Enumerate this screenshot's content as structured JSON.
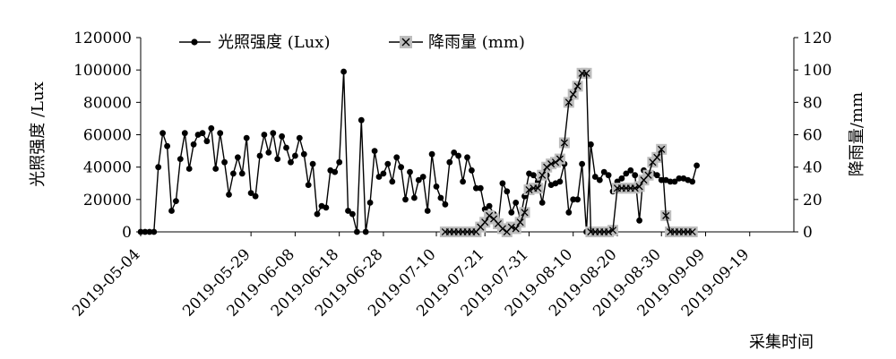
{
  "chart_data": {
    "type": "line",
    "x_type": "date",
    "x_range": [
      "2019-05-04",
      "2019-09-29"
    ],
    "x_ticks": [
      "2019-05-04",
      "2019-05-29",
      "2019-06-08",
      "2019-06-18",
      "2019-06-28",
      "2019-07-10",
      "2019-07-21",
      "2019-07-31",
      "2019-08-10",
      "2019-08-20",
      "2019-08-30",
      "2019-09-09",
      "2019-09-19"
    ],
    "xlabel": "采集时间",
    "y_left": {
      "label": "光照强度 /Lux",
      "range": [
        0,
        120000
      ],
      "ticks": [
        "0",
        "20000",
        "40000",
        "60000",
        "80000",
        "100000",
        "120000"
      ]
    },
    "y_right": {
      "label": "降雨量/mm",
      "range": [
        0,
        120
      ],
      "ticks": [
        "0",
        "20",
        "40",
        "60",
        "80",
        "100",
        "120"
      ]
    },
    "grid": false,
    "legend_position": "top",
    "series": [
      {
        "name": "光照强度 (Lux)",
        "axis": "left",
        "marker": "circle",
        "color": "#000000",
        "points": [
          [
            "2019-05-04",
            0
          ],
          [
            "2019-05-05",
            0
          ],
          [
            "2019-05-06",
            0
          ],
          [
            "2019-05-07",
            0
          ],
          [
            "2019-05-08",
            40000
          ],
          [
            "2019-05-09",
            61000
          ],
          [
            "2019-05-10",
            53000
          ],
          [
            "2019-05-11",
            13000
          ],
          [
            "2019-05-12",
            19000
          ],
          [
            "2019-05-13",
            45000
          ],
          [
            "2019-05-14",
            61000
          ],
          [
            "2019-05-15",
            39000
          ],
          [
            "2019-05-16",
            54000
          ],
          [
            "2019-05-17",
            60000
          ],
          [
            "2019-05-18",
            61000
          ],
          [
            "2019-05-19",
            56000
          ],
          [
            "2019-05-20",
            64000
          ],
          [
            "2019-05-21",
            39000
          ],
          [
            "2019-05-22",
            61000
          ],
          [
            "2019-05-23",
            43000
          ],
          [
            "2019-05-24",
            23000
          ],
          [
            "2019-05-25",
            36000
          ],
          [
            "2019-05-26",
            46000
          ],
          [
            "2019-05-27",
            36000
          ],
          [
            "2019-05-28",
            58000
          ],
          [
            "2019-05-29",
            24000
          ],
          [
            "2019-05-30",
            22000
          ],
          [
            "2019-05-31",
            47000
          ],
          [
            "2019-06-01",
            60000
          ],
          [
            "2019-06-02",
            49000
          ],
          [
            "2019-06-03",
            61000
          ],
          [
            "2019-06-04",
            45000
          ],
          [
            "2019-06-05",
            59000
          ],
          [
            "2019-06-06",
            52000
          ],
          [
            "2019-06-07",
            43000
          ],
          [
            "2019-06-08",
            47000
          ],
          [
            "2019-06-09",
            58000
          ],
          [
            "2019-06-10",
            48000
          ],
          [
            "2019-06-11",
            29000
          ],
          [
            "2019-06-12",
            42000
          ],
          [
            "2019-06-13",
            11000
          ],
          [
            "2019-06-14",
            16000
          ],
          [
            "2019-06-15",
            15000
          ],
          [
            "2019-06-16",
            38000
          ],
          [
            "2019-06-17",
            37000
          ],
          [
            "2019-06-18",
            43000
          ],
          [
            "2019-06-19",
            99000
          ],
          [
            "2019-06-20",
            13000
          ],
          [
            "2019-06-21",
            11000
          ],
          [
            "2019-06-22",
            0
          ],
          [
            "2019-06-23",
            69000
          ],
          [
            "2019-06-24",
            0
          ],
          [
            "2019-06-25",
            18000
          ],
          [
            "2019-06-26",
            50000
          ],
          [
            "2019-06-27",
            34000
          ],
          [
            "2019-06-28",
            36000
          ],
          [
            "2019-06-29",
            42000
          ],
          [
            "2019-06-30",
            31000
          ],
          [
            "2019-07-01",
            46000
          ],
          [
            "2019-07-02",
            40000
          ],
          [
            "2019-07-03",
            20000
          ],
          [
            "2019-07-04",
            37000
          ],
          [
            "2019-07-05",
            21000
          ],
          [
            "2019-07-06",
            32000
          ],
          [
            "2019-07-07",
            34000
          ],
          [
            "2019-07-08",
            13000
          ],
          [
            "2019-07-09",
            48000
          ],
          [
            "2019-07-10",
            28000
          ],
          [
            "2019-07-11",
            21000
          ],
          [
            "2019-07-12",
            17000
          ],
          [
            "2019-07-13",
            43000
          ],
          [
            "2019-07-14",
            49000
          ],
          [
            "2019-07-15",
            47000
          ],
          [
            "2019-07-16",
            31000
          ],
          [
            "2019-07-17",
            46000
          ],
          [
            "2019-07-18",
            38000
          ],
          [
            "2019-07-19",
            27000
          ],
          [
            "2019-07-20",
            27000
          ],
          [
            "2019-07-21",
            14000
          ],
          [
            "2019-07-22",
            16000
          ],
          [
            "2019-07-23",
            11000
          ],
          [
            "2019-07-24",
            5000
          ],
          [
            "2019-07-25",
            30000
          ],
          [
            "2019-07-26",
            25000
          ],
          [
            "2019-07-27",
            12000
          ],
          [
            "2019-07-28",
            18000
          ],
          [
            "2019-07-29",
            8000
          ],
          [
            "2019-07-30",
            22000
          ],
          [
            "2019-07-31",
            36000
          ],
          [
            "2019-08-01",
            35000
          ],
          [
            "2019-08-02",
            31000
          ],
          [
            "2019-08-03",
            18000
          ],
          [
            "2019-08-04",
            35000
          ],
          [
            "2019-08-05",
            29000
          ],
          [
            "2019-08-06",
            30000
          ],
          [
            "2019-08-07",
            31000
          ],
          [
            "2019-08-08",
            42000
          ],
          [
            "2019-08-09",
            12000
          ],
          [
            "2019-08-10",
            20000
          ],
          [
            "2019-08-11",
            20000
          ],
          [
            "2019-08-12",
            42000
          ],
          [
            "2019-08-13",
            0
          ],
          [
            "2019-08-14",
            54000
          ],
          [
            "2019-08-15",
            34000
          ],
          [
            "2019-08-16",
            32000
          ],
          [
            "2019-08-17",
            37000
          ],
          [
            "2019-08-18",
            35000
          ],
          [
            "2019-08-19",
            25000
          ],
          [
            "2019-08-20",
            31000
          ],
          [
            "2019-08-21",
            33000
          ],
          [
            "2019-08-22",
            36000
          ],
          [
            "2019-08-23",
            38000
          ],
          [
            "2019-08-24",
            35000
          ],
          [
            "2019-08-25",
            7000
          ],
          [
            "2019-08-26",
            38000
          ],
          [
            "2019-08-27",
            35000
          ],
          [
            "2019-08-28",
            36000
          ],
          [
            "2019-08-29",
            35000
          ],
          [
            "2019-08-30",
            32000
          ],
          [
            "2019-08-31",
            32000
          ],
          [
            "2019-09-01",
            31000
          ],
          [
            "2019-09-02",
            31000
          ],
          [
            "2019-09-03",
            33000
          ],
          [
            "2019-09-04",
            33000
          ],
          [
            "2019-09-05",
            32000
          ],
          [
            "2019-09-06",
            31000
          ],
          [
            "2019-09-07",
            41000
          ]
        ]
      },
      {
        "name": "降雨量 (mm)",
        "axis": "right",
        "marker": "x-on-gray-square",
        "color": "#000000",
        "marker_fill": "#bdbdbd",
        "points": [
          [
            "2019-07-12",
            0
          ],
          [
            "2019-07-13",
            0
          ],
          [
            "2019-07-14",
            0
          ],
          [
            "2019-07-15",
            0
          ],
          [
            "2019-07-16",
            0
          ],
          [
            "2019-07-17",
            0
          ],
          [
            "2019-07-18",
            0
          ],
          [
            "2019-07-19",
            0
          ],
          [
            "2019-07-20",
            3
          ],
          [
            "2019-07-21",
            6
          ],
          [
            "2019-07-22",
            10
          ],
          [
            "2019-07-23",
            8
          ],
          [
            "2019-07-24",
            5
          ],
          [
            "2019-07-25",
            2
          ],
          [
            "2019-07-26",
            0
          ],
          [
            "2019-07-27",
            3
          ],
          [
            "2019-07-28",
            2
          ],
          [
            "2019-07-29",
            6
          ],
          [
            "2019-07-30",
            12
          ],
          [
            "2019-07-31",
            26
          ],
          [
            "2019-08-01",
            27
          ],
          [
            "2019-08-02",
            27
          ],
          [
            "2019-08-03",
            35
          ],
          [
            "2019-08-04",
            40
          ],
          [
            "2019-08-05",
            42
          ],
          [
            "2019-08-06",
            43
          ],
          [
            "2019-08-07",
            45
          ],
          [
            "2019-08-08",
            55
          ],
          [
            "2019-08-09",
            80
          ],
          [
            "2019-08-10",
            85
          ],
          [
            "2019-08-11",
            90
          ],
          [
            "2019-08-12",
            98
          ],
          [
            "2019-08-13",
            98
          ],
          [
            "2019-08-14",
            0
          ],
          [
            "2019-08-15",
            0
          ],
          [
            "2019-08-16",
            0
          ],
          [
            "2019-08-17",
            0
          ],
          [
            "2019-08-18",
            0
          ],
          [
            "2019-08-19",
            1
          ],
          [
            "2019-08-20",
            27
          ],
          [
            "2019-08-21",
            27
          ],
          [
            "2019-08-22",
            27
          ],
          [
            "2019-08-23",
            27
          ],
          [
            "2019-08-24",
            27
          ],
          [
            "2019-08-25",
            28
          ],
          [
            "2019-08-26",
            32
          ],
          [
            "2019-08-27",
            35
          ],
          [
            "2019-08-28",
            43
          ],
          [
            "2019-08-29",
            46
          ],
          [
            "2019-08-30",
            51
          ],
          [
            "2019-08-31",
            10
          ],
          [
            "2019-09-01",
            0
          ],
          [
            "2019-09-02",
            0
          ],
          [
            "2019-09-03",
            0
          ],
          [
            "2019-09-04",
            0
          ],
          [
            "2019-09-05",
            0
          ],
          [
            "2019-09-06",
            0
          ]
        ]
      }
    ]
  }
}
